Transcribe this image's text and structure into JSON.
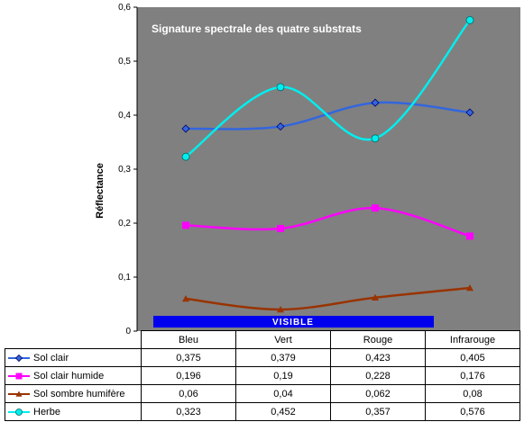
{
  "chart_data": {
    "type": "line",
    "title": "Signature spectrale des quatre substrats",
    "xlabel": "",
    "ylabel": "Réflectance",
    "categories": [
      "Bleu",
      "Vert",
      "Rouge",
      "Infrarouge"
    ],
    "ylim": [
      0,
      0.6
    ],
    "yticks": [
      "0",
      "0,1",
      "0,2",
      "0,3",
      "0,4",
      "0,5",
      "0,6"
    ],
    "grid": false,
    "band_label": "VISIBLE",
    "series": [
      {
        "name": "Sol clair",
        "color": "#3366dd",
        "marker": "diamond",
        "values": [
          0.375,
          0.379,
          0.423,
          0.405
        ],
        "labels": [
          "0,375",
          "0,379",
          "0,423",
          "0,405"
        ]
      },
      {
        "name": "Sol clair humide",
        "color": "#ff00ff",
        "marker": "square",
        "values": [
          0.196,
          0.19,
          0.228,
          0.176
        ],
        "labels": [
          "0,196",
          "0,19",
          "0,228",
          "0,176"
        ]
      },
      {
        "name": "Sol sombre humifère",
        "color": "#993300",
        "marker": "triangle",
        "values": [
          0.06,
          0.04,
          0.062,
          0.08
        ],
        "labels": [
          "0,06",
          "0,04",
          "0,062",
          "0,08"
        ]
      },
      {
        "name": "Herbe",
        "color": "#00eeee",
        "marker": "circle",
        "values": [
          0.323,
          0.452,
          0.357,
          0.576
        ],
        "labels": [
          "0,323",
          "0,452",
          "0,357",
          "0,576"
        ]
      }
    ]
  },
  "colors": {
    "plot_background": "#808080",
    "visible_band": "#0000ee"
  }
}
